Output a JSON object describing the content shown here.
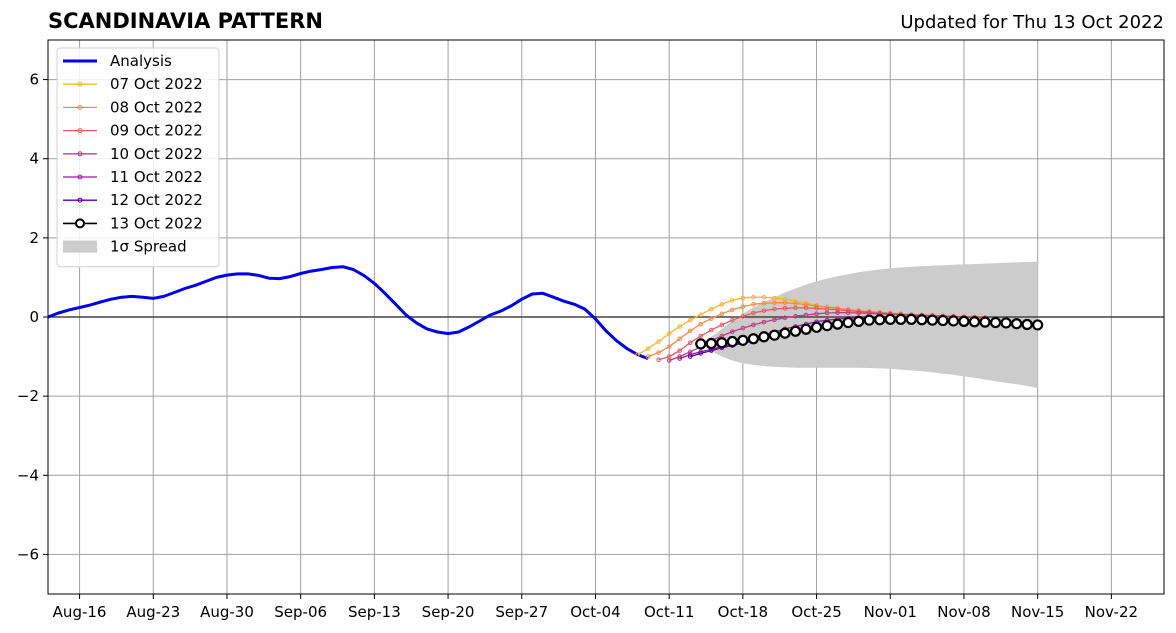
{
  "header": {
    "title": "SCANDINAVIA PATTERN",
    "updated": "Updated for Thu 13 Oct 2022"
  },
  "chart_data": {
    "type": "line",
    "title": "SCANDINAVIA PATTERN",
    "xlabel": "",
    "ylabel": "",
    "xlim": [
      "2022-08-13",
      "2022-11-27"
    ],
    "ylim": [
      -7,
      7
    ],
    "grid": true,
    "legend_position": "top-left",
    "x_ticks": [
      {
        "date": "2022-08-16",
        "label": "Aug-16"
      },
      {
        "date": "2022-08-23",
        "label": "Aug-23"
      },
      {
        "date": "2022-08-30",
        "label": "Aug-30"
      },
      {
        "date": "2022-09-06",
        "label": "Sep-06"
      },
      {
        "date": "2022-09-13",
        "label": "Sep-13"
      },
      {
        "date": "2022-09-20",
        "label": "Sep-20"
      },
      {
        "date": "2022-09-27",
        "label": "Sep-27"
      },
      {
        "date": "2022-10-04",
        "label": "Oct-04"
      },
      {
        "date": "2022-10-11",
        "label": "Oct-11"
      },
      {
        "date": "2022-10-18",
        "label": "Oct-18"
      },
      {
        "date": "2022-10-25",
        "label": "Oct-25"
      },
      {
        "date": "2022-11-01",
        "label": "Nov-01"
      },
      {
        "date": "2022-11-08",
        "label": "Nov-08"
      },
      {
        "date": "2022-11-15",
        "label": "Nov-15"
      },
      {
        "date": "2022-11-22",
        "label": "Nov-22"
      }
    ],
    "y_ticks": [
      {
        "value": 6,
        "label": "6"
      },
      {
        "value": 4,
        "label": "4"
      },
      {
        "value": 2,
        "label": "2"
      },
      {
        "value": 0,
        "label": "0"
      },
      {
        "value": -2,
        "label": "−2"
      },
      {
        "value": -4,
        "label": "−4"
      },
      {
        "value": -6,
        "label": "−6"
      }
    ],
    "analysis": {
      "name": "Analysis",
      "color": "#0000ee",
      "points": [
        [
          "2022-08-13",
          0.0
        ],
        [
          "2022-08-14",
          0.1
        ],
        [
          "2022-08-15",
          0.18
        ],
        [
          "2022-08-16",
          0.24
        ],
        [
          "2022-08-17",
          0.3
        ],
        [
          "2022-08-18",
          0.38
        ],
        [
          "2022-08-19",
          0.45
        ],
        [
          "2022-08-20",
          0.5
        ],
        [
          "2022-08-21",
          0.52
        ],
        [
          "2022-08-22",
          0.5
        ],
        [
          "2022-08-23",
          0.47
        ],
        [
          "2022-08-24",
          0.52
        ],
        [
          "2022-08-25",
          0.62
        ],
        [
          "2022-08-26",
          0.72
        ],
        [
          "2022-08-27",
          0.8
        ],
        [
          "2022-08-28",
          0.9
        ],
        [
          "2022-08-29",
          1.0
        ],
        [
          "2022-08-30",
          1.06
        ],
        [
          "2022-08-31",
          1.09
        ],
        [
          "2022-09-01",
          1.09
        ],
        [
          "2022-09-02",
          1.05
        ],
        [
          "2022-09-03",
          0.98
        ],
        [
          "2022-09-04",
          0.97
        ],
        [
          "2022-09-05",
          1.02
        ],
        [
          "2022-09-06",
          1.1
        ],
        [
          "2022-09-07",
          1.16
        ],
        [
          "2022-09-08",
          1.2
        ],
        [
          "2022-09-09",
          1.25
        ],
        [
          "2022-09-10",
          1.27
        ],
        [
          "2022-09-11",
          1.2
        ],
        [
          "2022-09-12",
          1.05
        ],
        [
          "2022-09-13",
          0.85
        ],
        [
          "2022-09-14",
          0.6
        ],
        [
          "2022-09-15",
          0.33
        ],
        [
          "2022-09-16",
          0.05
        ],
        [
          "2022-09-17",
          -0.15
        ],
        [
          "2022-09-18",
          -0.3
        ],
        [
          "2022-09-19",
          -0.38
        ],
        [
          "2022-09-20",
          -0.42
        ],
        [
          "2022-09-21",
          -0.38
        ],
        [
          "2022-09-22",
          -0.25
        ],
        [
          "2022-09-23",
          -0.1
        ],
        [
          "2022-09-24",
          0.05
        ],
        [
          "2022-09-25",
          0.15
        ],
        [
          "2022-09-26",
          0.28
        ],
        [
          "2022-09-27",
          0.45
        ],
        [
          "2022-09-28",
          0.58
        ],
        [
          "2022-09-29",
          0.6
        ],
        [
          "2022-09-30",
          0.5
        ],
        [
          "2022-10-01",
          0.4
        ],
        [
          "2022-10-02",
          0.32
        ],
        [
          "2022-10-03",
          0.2
        ],
        [
          "2022-10-04",
          -0.05
        ],
        [
          "2022-10-05",
          -0.35
        ],
        [
          "2022-10-06",
          -0.6
        ],
        [
          "2022-10-07",
          -0.8
        ],
        [
          "2022-10-08",
          -0.95
        ],
        [
          "2022-10-09",
          -1.05
        ]
      ]
    },
    "series": [
      {
        "name": "07 Oct 2022",
        "color": "#fbb433",
        "start": "2022-10-08",
        "values": [
          -0.95,
          -0.8,
          -0.62,
          -0.42,
          -0.24,
          -0.08,
          0.06,
          0.2,
          0.32,
          0.42,
          0.48,
          0.5,
          0.5,
          0.48,
          0.45,
          0.4,
          0.35,
          0.3,
          0.25,
          0.2,
          0.16,
          0.12,
          0.1,
          0.08,
          0.06,
          0.05,
          0.04,
          0.03,
          0.02,
          0.01,
          0.0,
          -0.01,
          -0.02,
          -0.03
        ]
      },
      {
        "name": "08 Oct 2022",
        "color": "#f78c47",
        "start": "2022-10-09",
        "values": [
          -1.0,
          -0.9,
          -0.75,
          -0.55,
          -0.35,
          -0.18,
          -0.04,
          0.08,
          0.18,
          0.26,
          0.32,
          0.35,
          0.36,
          0.36,
          0.34,
          0.31,
          0.28,
          0.25,
          0.22,
          0.19,
          0.16,
          0.14,
          0.12,
          0.1,
          0.08,
          0.06,
          0.05,
          0.04,
          0.03,
          0.02,
          0.01,
          0.0,
          -0.01
        ]
      },
      {
        "name": "09 Oct 2022",
        "color": "#e65d62",
        "start": "2022-10-10",
        "values": [
          -1.08,
          -1.0,
          -0.85,
          -0.65,
          -0.48,
          -0.33,
          -0.2,
          -0.08,
          0.02,
          0.1,
          0.16,
          0.2,
          0.22,
          0.23,
          0.23,
          0.22,
          0.2,
          0.18,
          0.16,
          0.14,
          0.12,
          0.1,
          0.08,
          0.06,
          0.05,
          0.04,
          0.03,
          0.02,
          0.01,
          0.0,
          -0.01,
          -0.02
        ]
      },
      {
        "name": "10 Oct 2022",
        "color": "#c53b82",
        "start": "2022-10-11",
        "values": [
          -1.1,
          -1.0,
          -0.88,
          -0.75,
          -0.6,
          -0.48,
          -0.37,
          -0.28,
          -0.2,
          -0.13,
          -0.07,
          -0.02,
          0.02,
          0.05,
          0.08,
          0.1,
          0.11,
          0.11,
          0.1,
          0.09,
          0.08,
          0.07,
          0.06,
          0.05,
          0.04,
          0.03,
          0.02,
          0.01,
          0.0,
          -0.01,
          -0.02
        ]
      },
      {
        "name": "11 Oct 2022",
        "color": "#9c179e",
        "start": "2022-10-12",
        "values": [
          -1.05,
          -0.95,
          -0.88,
          -0.82,
          -0.75,
          -0.68,
          -0.6,
          -0.52,
          -0.45,
          -0.38,
          -0.3,
          -0.24,
          -0.18,
          -0.12,
          -0.08,
          -0.05,
          -0.03,
          -0.02,
          -0.02,
          -0.02,
          -0.03,
          -0.04,
          -0.05,
          -0.06,
          -0.07,
          -0.08,
          -0.09,
          -0.1,
          -0.11,
          -0.12
        ]
      },
      {
        "name": "12 Oct 2022",
        "color": "#5c01a6",
        "start": "2022-10-13",
        "values": [
          -1.0,
          -0.92,
          -0.85,
          -0.78,
          -0.72,
          -0.66,
          -0.6,
          -0.55,
          -0.5,
          -0.44,
          -0.38,
          -0.32,
          -0.27,
          -0.22,
          -0.18,
          -0.14,
          -0.11,
          -0.09,
          -0.08,
          -0.07,
          -0.07,
          -0.08,
          -0.09,
          -0.1,
          -0.11,
          -0.12,
          -0.13,
          -0.14,
          -0.15
        ]
      },
      {
        "name": "13 Oct 2022",
        "color": "#000000",
        "start": "2022-10-14",
        "marker": "open-circle",
        "values": [
          -0.68,
          -0.67,
          -0.65,
          -0.62,
          -0.59,
          -0.55,
          -0.5,
          -0.46,
          -0.41,
          -0.36,
          -0.31,
          -0.26,
          -0.22,
          -0.18,
          -0.14,
          -0.11,
          -0.08,
          -0.07,
          -0.06,
          -0.06,
          -0.06,
          -0.07,
          -0.08,
          -0.09,
          -0.1,
          -0.11,
          -0.12,
          -0.13,
          -0.14,
          -0.15,
          -0.17,
          -0.19,
          -0.2
        ]
      }
    ],
    "spread": {
      "name": "1σ Spread",
      "color": "#cccccc",
      "start": "2022-10-14",
      "upper": [
        -0.68,
        -0.5,
        -0.3,
        -0.1,
        0.08,
        0.24,
        0.38,
        0.5,
        0.62,
        0.72,
        0.82,
        0.9,
        0.97,
        1.03,
        1.08,
        1.13,
        1.17,
        1.2,
        1.23,
        1.25,
        1.27,
        1.28,
        1.3,
        1.31,
        1.32,
        1.33,
        1.34,
        1.35,
        1.36,
        1.37,
        1.38,
        1.39,
        1.4
      ],
      "lower": [
        -0.68,
        -0.86,
        -1.0,
        -1.1,
        -1.17,
        -1.21,
        -1.24,
        -1.26,
        -1.27,
        -1.28,
        -1.28,
        -1.28,
        -1.28,
        -1.28,
        -1.28,
        -1.28,
        -1.29,
        -1.3,
        -1.31,
        -1.33,
        -1.35,
        -1.37,
        -1.4,
        -1.43,
        -1.46,
        -1.5,
        -1.54,
        -1.58,
        -1.62,
        -1.66,
        -1.7,
        -1.74,
        -1.8
      ]
    }
  }
}
